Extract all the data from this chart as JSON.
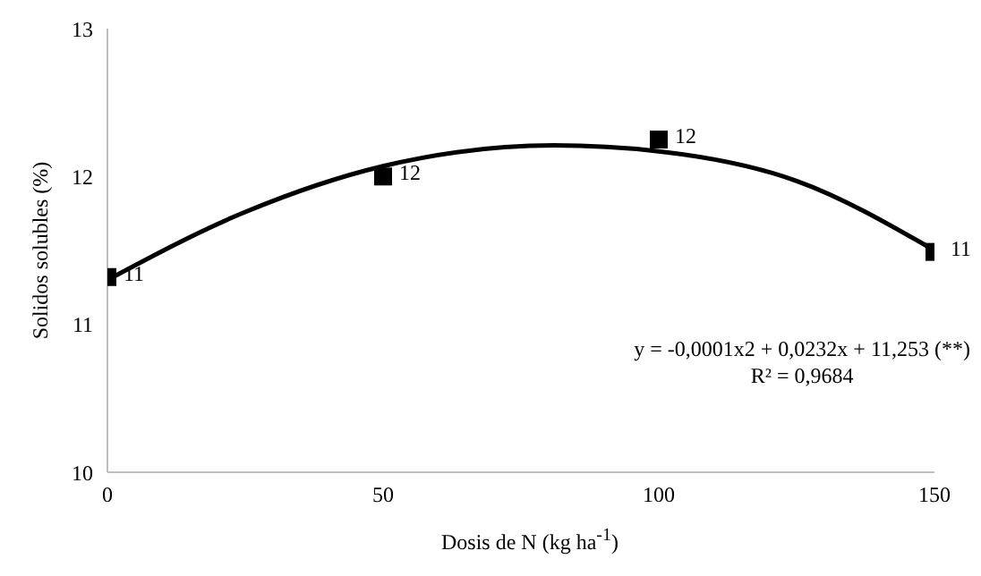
{
  "chart_data": {
    "type": "scatter",
    "xlabel": "Dosis de N (kg ha$^{-1}$)",
    "ylabel": "Solidos solubles (%)",
    "xlim": [
      0,
      150
    ],
    "xticks": [
      0,
      50,
      100,
      150
    ],
    "ylim": [
      10,
      13
    ],
    "yticks": [
      10,
      11,
      12,
      13
    ],
    "grid": false,
    "legend": false,
    "series": [
      {
        "color": "#000000",
        "marker": "square",
        "x": [
          0,
          50,
          100,
          150
        ],
        "values": [
          11.32,
          12.0,
          12.25,
          11.49
        ],
        "value_labels": [
          "11",
          "12",
          "12",
          "11"
        ]
      },
      {
        "type": "line",
        "color": "#000000",
        "marker": "none",
        "line_style": "solid",
        "x": [
          0,
          25,
          50,
          81,
          100,
          125,
          150
        ],
        "values": [
          11.3,
          11.76,
          12.07,
          12.21,
          12.17,
          11.97,
          11.5
        ]
      }
    ],
    "annotations": [
      "y = -0,0001x2 + 0,0232x + 11,253 (**)",
      "R² = 0,9684"
    ]
  }
}
